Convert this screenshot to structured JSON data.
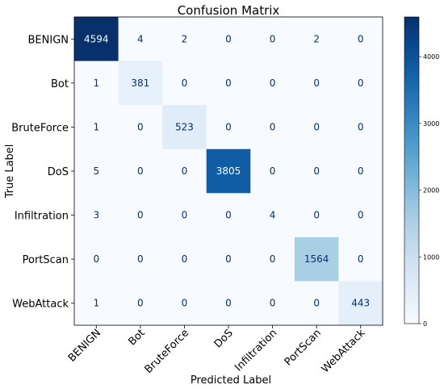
{
  "chart_data": {
    "type": "heatmap",
    "title": "Confusion Matrix",
    "xlabel": "Predicted Label",
    "ylabel": "True Label",
    "row_labels": [
      "BENIGN",
      "Bot",
      "BruteForce",
      "DoS",
      "Infiltration",
      "PortScan",
      "WebAttack"
    ],
    "col_labels": [
      "BENIGN",
      "Bot",
      "BruteForce",
      "DoS",
      "Infiltration",
      "PortScan",
      "WebAttack"
    ],
    "values": [
      [
        4594,
        4,
        2,
        0,
        0,
        2,
        0
      ],
      [
        1,
        381,
        0,
        0,
        0,
        0,
        0
      ],
      [
        1,
        0,
        523,
        0,
        0,
        0,
        0
      ],
      [
        5,
        0,
        0,
        3805,
        0,
        0,
        0
      ],
      [
        3,
        0,
        0,
        0,
        4,
        0,
        0
      ],
      [
        0,
        0,
        0,
        0,
        0,
        1564,
        0
      ],
      [
        1,
        0,
        0,
        0,
        0,
        0,
        443
      ]
    ],
    "colorbar": {
      "colormap": "Blues",
      "vmin": 0,
      "vmax": 4594,
      "ticks": [
        0,
        1000,
        2000,
        3000,
        4000
      ]
    },
    "grid": false
  }
}
